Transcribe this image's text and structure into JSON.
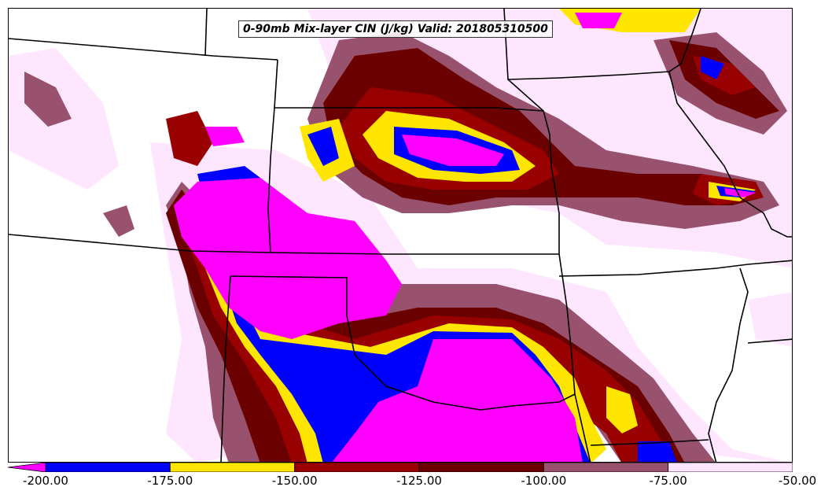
{
  "title": "0-90mb Mix-layer CIN (J/kg) Valid: 201805310500",
  "colorbar": {
    "colors": [
      "#ff00ff",
      "#0000ff",
      "#ffe600",
      "#990000",
      "#6b0000",
      "#99526e",
      "#ffe6ff"
    ],
    "levels": [
      "-200.00",
      "-175.00",
      "-150.00",
      "-125.00",
      "-100.00",
      "-75.00",
      "-50.00"
    ]
  },
  "field_colors": {
    "lt_neg200": "#ff00ff",
    "neg200_neg175": "#0000ff",
    "neg175_neg150": "#ffe600",
    "neg150_neg125": "#990000",
    "neg125_neg100": "#6b0000",
    "neg100_neg75": "#99526e",
    "neg75_neg50": "#ffe6ff"
  }
}
